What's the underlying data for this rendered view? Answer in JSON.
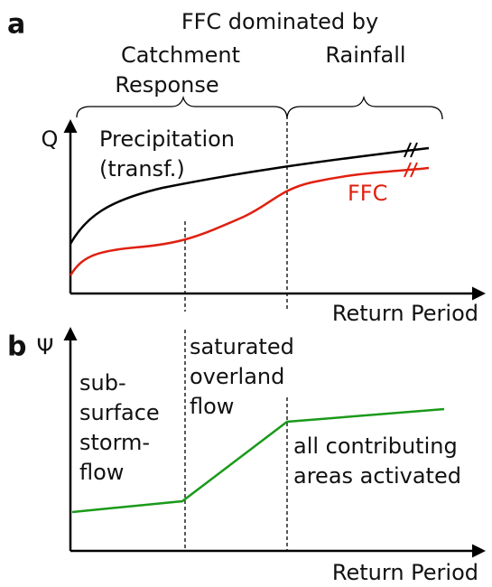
{
  "panel_a": {
    "label": "a",
    "heading": "FFC dominated by",
    "brace_labels": [
      [
        "Catchment",
        "Response"
      ],
      [
        "Rainfall"
      ]
    ],
    "y_axis": "Q",
    "x_axis": "Return Period",
    "curve_labels": [
      [
        "Precipitation",
        "(transf.)"
      ],
      [
        "FFC"
      ]
    ]
  },
  "panel_b": {
    "label": "b",
    "y_axis": "Ψ",
    "x_axis": "Return Period",
    "zones": [
      [
        "sub-",
        "surface",
        "storm-",
        "flow"
      ],
      [
        "saturated",
        "overland",
        "flow"
      ],
      [
        "all contributing",
        "areas activated"
      ]
    ]
  }
}
